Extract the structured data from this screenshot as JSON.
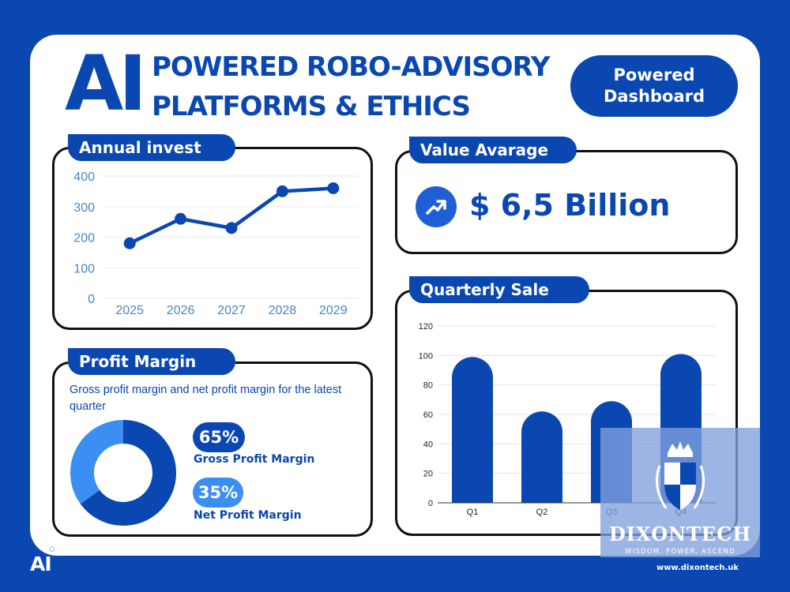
{
  "header": {
    "logo_text": "AI",
    "title_line1": "POWERED ROBO-ADVISORY",
    "title_line2": "PLATFORMS & ETHICS",
    "badge_line1": "Powered",
    "badge_line2": "Dashboard"
  },
  "annual_invest": {
    "label": "Annual invest"
  },
  "value_average": {
    "label": "Value Avarage",
    "icon": "trending-up-icon",
    "value": "$ 6,5 Billion"
  },
  "profit_margin": {
    "label": "Profit Margin",
    "description": "Gross profit margin and net profit margin for the latest quarter",
    "gross_pct": "65%",
    "gross_label": "Gross Profit Margin",
    "net_pct": "35%",
    "net_label": "Net Profit Margin"
  },
  "quarterly_sale": {
    "label": "Quarterly Sale"
  },
  "footer": {
    "logo_text": "AI",
    "brand_name": "DIXONTECH",
    "brand_tagline": "WISDOM. POWER. ASCEND",
    "url": "www.dixontech.uk"
  },
  "colors": {
    "brand_blue": "#0a47b0",
    "light_blue": "#3b8ef2",
    "axis_tick": "#4a86c8"
  },
  "chart_data": [
    {
      "type": "line",
      "x": [
        "2025",
        "2026",
        "2027",
        "2028",
        "2029"
      ],
      "values": [
        180,
        260,
        230,
        350,
        360
      ],
      "ylim": [
        0,
        400
      ],
      "yticks": [
        0,
        100,
        200,
        300,
        400
      ],
      "title": "",
      "xlabel": "",
      "ylabel": "",
      "grid": true
    },
    {
      "type": "bar",
      "categories": [
        "Q1",
        "Q2",
        "Q3",
        "Q4"
      ],
      "values": [
        99,
        62,
        69,
        101
      ],
      "ylim": [
        0,
        120
      ],
      "yticks": [
        0,
        20,
        40,
        60,
        80,
        100,
        120
      ],
      "title": "",
      "xlabel": "",
      "ylabel": "",
      "grid": true
    },
    {
      "type": "pie",
      "categories": [
        "Gross Profit Margin",
        "Net Profit Margin"
      ],
      "values": [
        65,
        35
      ],
      "title": ""
    }
  ]
}
